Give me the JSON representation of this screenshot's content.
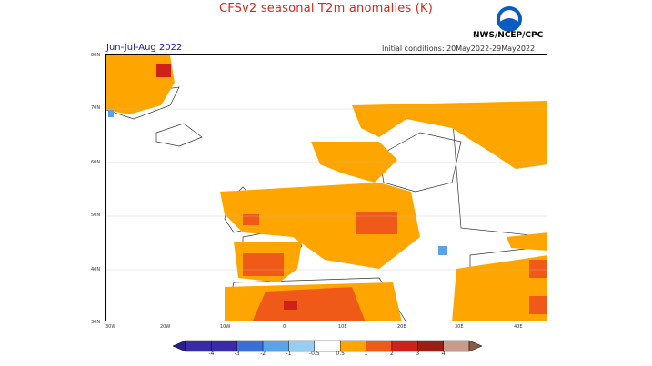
{
  "header": {
    "title": "CFSv2 seasonal T2m anomalies (K)",
    "season": "Jun-Jul-Aug 2022",
    "initial_conditions": "Initial conditions: 20May2022-29May2022",
    "agency": "NWS/NCEP/CPC",
    "logo_text": "NOAA"
  },
  "map": {
    "lat_labels": [
      "80N",
      "70N",
      "60N",
      "50N",
      "40N",
      "30N"
    ],
    "lon_labels": [
      "30W",
      "20W",
      "10W",
      "0",
      "10E",
      "20E",
      "30E",
      "40E"
    ]
  },
  "colorbar": {
    "labels": [
      "-4",
      "-3",
      "-2",
      "-1",
      "-0.5",
      "0.5",
      "1",
      "2",
      "3",
      "4"
    ],
    "colors": [
      "#3b2aa8",
      "#3b6fd8",
      "#5aa3e8",
      "#96cdf0",
      "#ffffff",
      "#ffa500",
      "#f05a18",
      "#d0201a",
      "#9a1e14",
      "#c79b8c"
    ],
    "low_arrow_color": "#2a1e8a",
    "high_arrow_color": "#8a5a45"
  },
  "palette": {
    "anomaly_low": "#ffa500",
    "anomaly_mid": "#f05a18",
    "anomaly_high": "#d0201a",
    "anomaly_cold": "#5aa3e8"
  }
}
